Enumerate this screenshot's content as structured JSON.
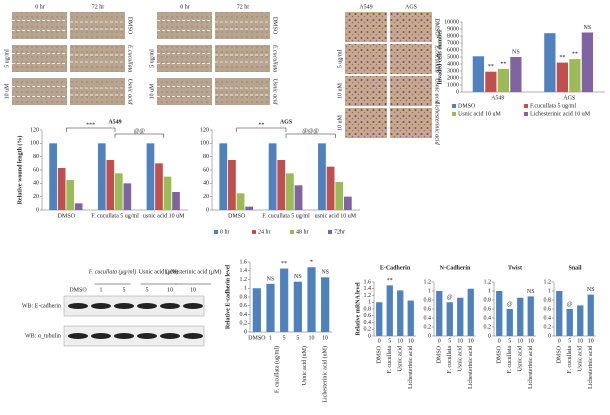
{
  "wound_assay": [
    {
      "columns": [
        "0 hr",
        "72 hr"
      ],
      "row_labels": [
        "DMSO",
        "E.cucullata",
        "Usnic acid"
      ],
      "doses": [
        "5 ug/ml",
        "10 uM"
      ]
    },
    {
      "columns": [
        "0 hr",
        "72 hr"
      ],
      "row_labels": [
        "DMSO",
        "E.cucullata",
        "Usnic acid"
      ],
      "doses": [
        "5 ug/ml",
        "10 uM"
      ]
    }
  ],
  "invasion_assay": {
    "columns": [
      "A549",
      "AGS"
    ],
    "row_labels": [
      "DMSO",
      "E.cucullata",
      "Usnic acid",
      "Lichesterinic acid"
    ],
    "doses": [
      "5 ug/ml",
      "10 uM",
      "10 uM"
    ]
  },
  "western_blot": {
    "control": "DMSO",
    "groups": [
      {
        "label": "F. cucullata (μg/ml)",
        "doses": [
          "1",
          "5"
        ]
      },
      {
        "label": "Usnic acid (μM)",
        "doses": [
          "5",
          "10"
        ]
      },
      {
        "label": "Lichesterinic acid (μM)",
        "doses": [
          "10"
        ]
      }
    ],
    "rows": [
      "WB: E-cadherin",
      "WB: α_tubulin"
    ]
  },
  "chart_data": [
    {
      "type": "bar",
      "y_label": "Invaded cells number",
      "categories": [
        "A549",
        "AGS"
      ],
      "ylim": [
        0,
        10000
      ],
      "yticks": [
        0,
        1000,
        2000,
        3000,
        4000,
        5000,
        6000,
        7000,
        8000,
        9000,
        10000
      ],
      "legend": true,
      "series": [
        {
          "name": "DMSO",
          "color": "#4f81bd",
          "values": [
            5100,
            8400
          ],
          "annotations": [
            null,
            null
          ]
        },
        {
          "name": "F.cucullata 5 ug/ml",
          "color": "#c0504d",
          "values": [
            2900,
            4200
          ],
          "annotations": [
            "**",
            "**"
          ]
        },
        {
          "name": "Usnic acid 10 uM",
          "color": "#9bbb59",
          "values": [
            3300,
            4700
          ],
          "annotations": [
            "**",
            "**"
          ]
        },
        {
          "name": "Lichesterinic acid 10 uM",
          "color": "#8064a2",
          "values": [
            5000,
            8500
          ],
          "annotations": [
            "NS",
            "NS"
          ]
        }
      ]
    },
    {
      "type": "bar",
      "title": "A549",
      "y_label": "Relative wound length (%)",
      "categories": [
        "DMSO",
        "F. cucullata 5 ug/ml",
        "usnic acid 10 uM"
      ],
      "ylim": [
        0,
        120
      ],
      "yticks": [
        0,
        20,
        40,
        60,
        80,
        100,
        120
      ],
      "legend": false,
      "annotations": [
        "***",
        "@@"
      ],
      "series": [
        {
          "name": "0 hr",
          "color": "#4f81bd",
          "values": [
            100,
            100,
            100
          ]
        },
        {
          "name": "24 hr",
          "color": "#c0504d",
          "values": [
            63,
            75,
            70
          ]
        },
        {
          "name": "48 hr",
          "color": "#9bbb59",
          "values": [
            45,
            55,
            50
          ]
        },
        {
          "name": "72hr",
          "color": "#8064a2",
          "values": [
            10,
            40,
            27
          ]
        }
      ]
    },
    {
      "type": "bar",
      "title": "AGS",
      "categories": [
        "DMSO",
        "F. cucullata 5 ug/ml",
        "usnic acid 10 uM"
      ],
      "ylim": [
        0,
        120
      ],
      "yticks": [
        0,
        20,
        40,
        60,
        80,
        100,
        120
      ],
      "legend": true,
      "annotations": [
        "**",
        "@@@"
      ],
      "series": [
        {
          "name": "0 hr",
          "color": "#4f81bd",
          "values": [
            100,
            100,
            100
          ]
        },
        {
          "name": "24 hr",
          "color": "#c0504d",
          "values": [
            75,
            75,
            65
          ]
        },
        {
          "name": "48 hr",
          "color": "#9bbb59",
          "values": [
            25,
            55,
            42
          ]
        },
        {
          "name": "72hr",
          "color": "#8064a2",
          "values": [
            5,
            37,
            20
          ]
        }
      ]
    },
    {
      "type": "bar",
      "y_label": "Relative E-cadherin level",
      "categories": [
        "DMSO",
        "1",
        "5",
        "5",
        "10",
        "10"
      ],
      "values": [
        1.0,
        1.1,
        1.45,
        1.15,
        1.48,
        1.25
      ],
      "value_annotations": [
        null,
        "NS",
        "**",
        "NS",
        "*",
        "NS"
      ],
      "color": "#4f81bd",
      "ylim": [
        0,
        1.6
      ],
      "yticks": [
        0,
        0.2,
        0.4,
        0.6,
        0.8,
        1,
        1.2,
        1.4,
        1.6
      ],
      "groups": [
        "F. cucullata (ug/ml)",
        "Usnic acid (uM)",
        "Lichesterinic acid (uM)"
      ]
    },
    {
      "type": "bar",
      "title": "E-Cadherin",
      "y_label": "Relative mRNA level",
      "categories": [
        "DMSO",
        "F. cucullata",
        "Usnic acid",
        "Lichesterinic acid"
      ],
      "doses": [
        "0",
        "5",
        "10",
        "10"
      ],
      "values": [
        1.0,
        1.5,
        1.35,
        1.05
      ],
      "value_annotations": [
        null,
        "**",
        null,
        null
      ],
      "color": "#4f81bd",
      "ylim": [
        0,
        1.6
      ],
      "yticks": [
        0,
        0.2,
        0.4,
        0.6,
        0.8,
        1,
        1.2,
        1.4,
        1.6
      ]
    },
    {
      "type": "bar",
      "title": "N-Cadherin",
      "categories": [
        "DMSO",
        "F. cucullata",
        "Usnic acid",
        "Lichesterinic acid"
      ],
      "doses": [
        "0",
        "5",
        "10",
        "10"
      ],
      "values": [
        1.0,
        0.75,
        0.85,
        1.05
      ],
      "value_annotations": [
        null,
        "@",
        null,
        null
      ],
      "color": "#4f81bd",
      "ylim": [
        0,
        1.2
      ],
      "yticks": [
        0,
        0.2,
        0.4,
        0.6,
        0.8,
        1,
        1.2
      ]
    },
    {
      "type": "bar",
      "title": "Twist",
      "categories": [
        "DMSO",
        "F. cucullata",
        "Usnic acid",
        "Lichesterinic acid"
      ],
      "doses": [
        "0",
        "5",
        "10",
        "10"
      ],
      "values": [
        1.0,
        0.6,
        0.85,
        0.88
      ],
      "value_annotations": [
        null,
        "@",
        null,
        "NS"
      ],
      "color": "#4f81bd",
      "ylim": [
        0,
        1.2
      ],
      "yticks": [
        0,
        0.2,
        0.4,
        0.6,
        0.8,
        1,
        1.2
      ]
    },
    {
      "type": "bar",
      "title": "Snail",
      "categories": [
        "DMSO",
        "F. cucullata",
        "Usnic acid",
        "Lichesterinic acid"
      ],
      "doses": [
        "0",
        "5",
        "10",
        "10"
      ],
      "values": [
        1.0,
        0.6,
        0.68,
        0.92
      ],
      "value_annotations": [
        null,
        "@",
        null,
        "NS"
      ],
      "color": "#4f81bd",
      "ylim": [
        0,
        1.2
      ],
      "yticks": [
        0,
        0.2,
        0.4,
        0.6,
        0.8,
        1,
        1.2
      ]
    }
  ]
}
